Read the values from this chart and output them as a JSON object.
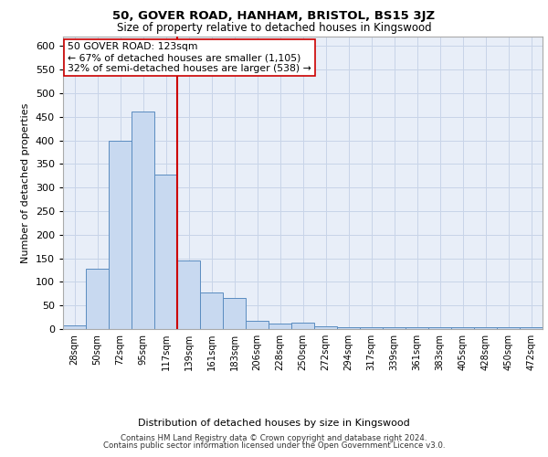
{
  "title1": "50, GOVER ROAD, HANHAM, BRISTOL, BS15 3JZ",
  "title2": "Size of property relative to detached houses in Kingswood",
  "xlabel": "Distribution of detached houses by size in Kingswood",
  "ylabel": "Number of detached properties",
  "categories": [
    "28sqm",
    "50sqm",
    "72sqm",
    "95sqm",
    "117sqm",
    "139sqm",
    "161sqm",
    "183sqm",
    "206sqm",
    "228sqm",
    "250sqm",
    "272sqm",
    "294sqm",
    "317sqm",
    "339sqm",
    "361sqm",
    "383sqm",
    "405sqm",
    "428sqm",
    "450sqm",
    "472sqm"
  ],
  "bar_values": [
    8,
    128,
    400,
    462,
    328,
    145,
    78,
    65,
    18,
    12,
    13,
    5,
    3,
    3,
    3,
    3,
    3,
    3,
    3,
    3,
    3
  ],
  "bar_color": "#c8d9f0",
  "bar_edge_color": "#5a8cc0",
  "grid_color": "#c8d4e8",
  "background_color": "#e8eef8",
  "vline_x_index": 4.5,
  "vline_color": "#cc0000",
  "annotation_text": "50 GOVER ROAD: 123sqm\n← 67% of detached houses are smaller (1,105)\n32% of semi-detached houses are larger (538) →",
  "annotation_box_facecolor": "#ffffff",
  "annotation_box_edgecolor": "#cc0000",
  "ylim": [
    0,
    620
  ],
  "yticks": [
    0,
    50,
    100,
    150,
    200,
    250,
    300,
    350,
    400,
    450,
    500,
    550,
    600
  ],
  "footer1": "Contains HM Land Registry data © Crown copyright and database right 2024.",
  "footer2": "Contains public sector information licensed under the Open Government Licence v3.0."
}
